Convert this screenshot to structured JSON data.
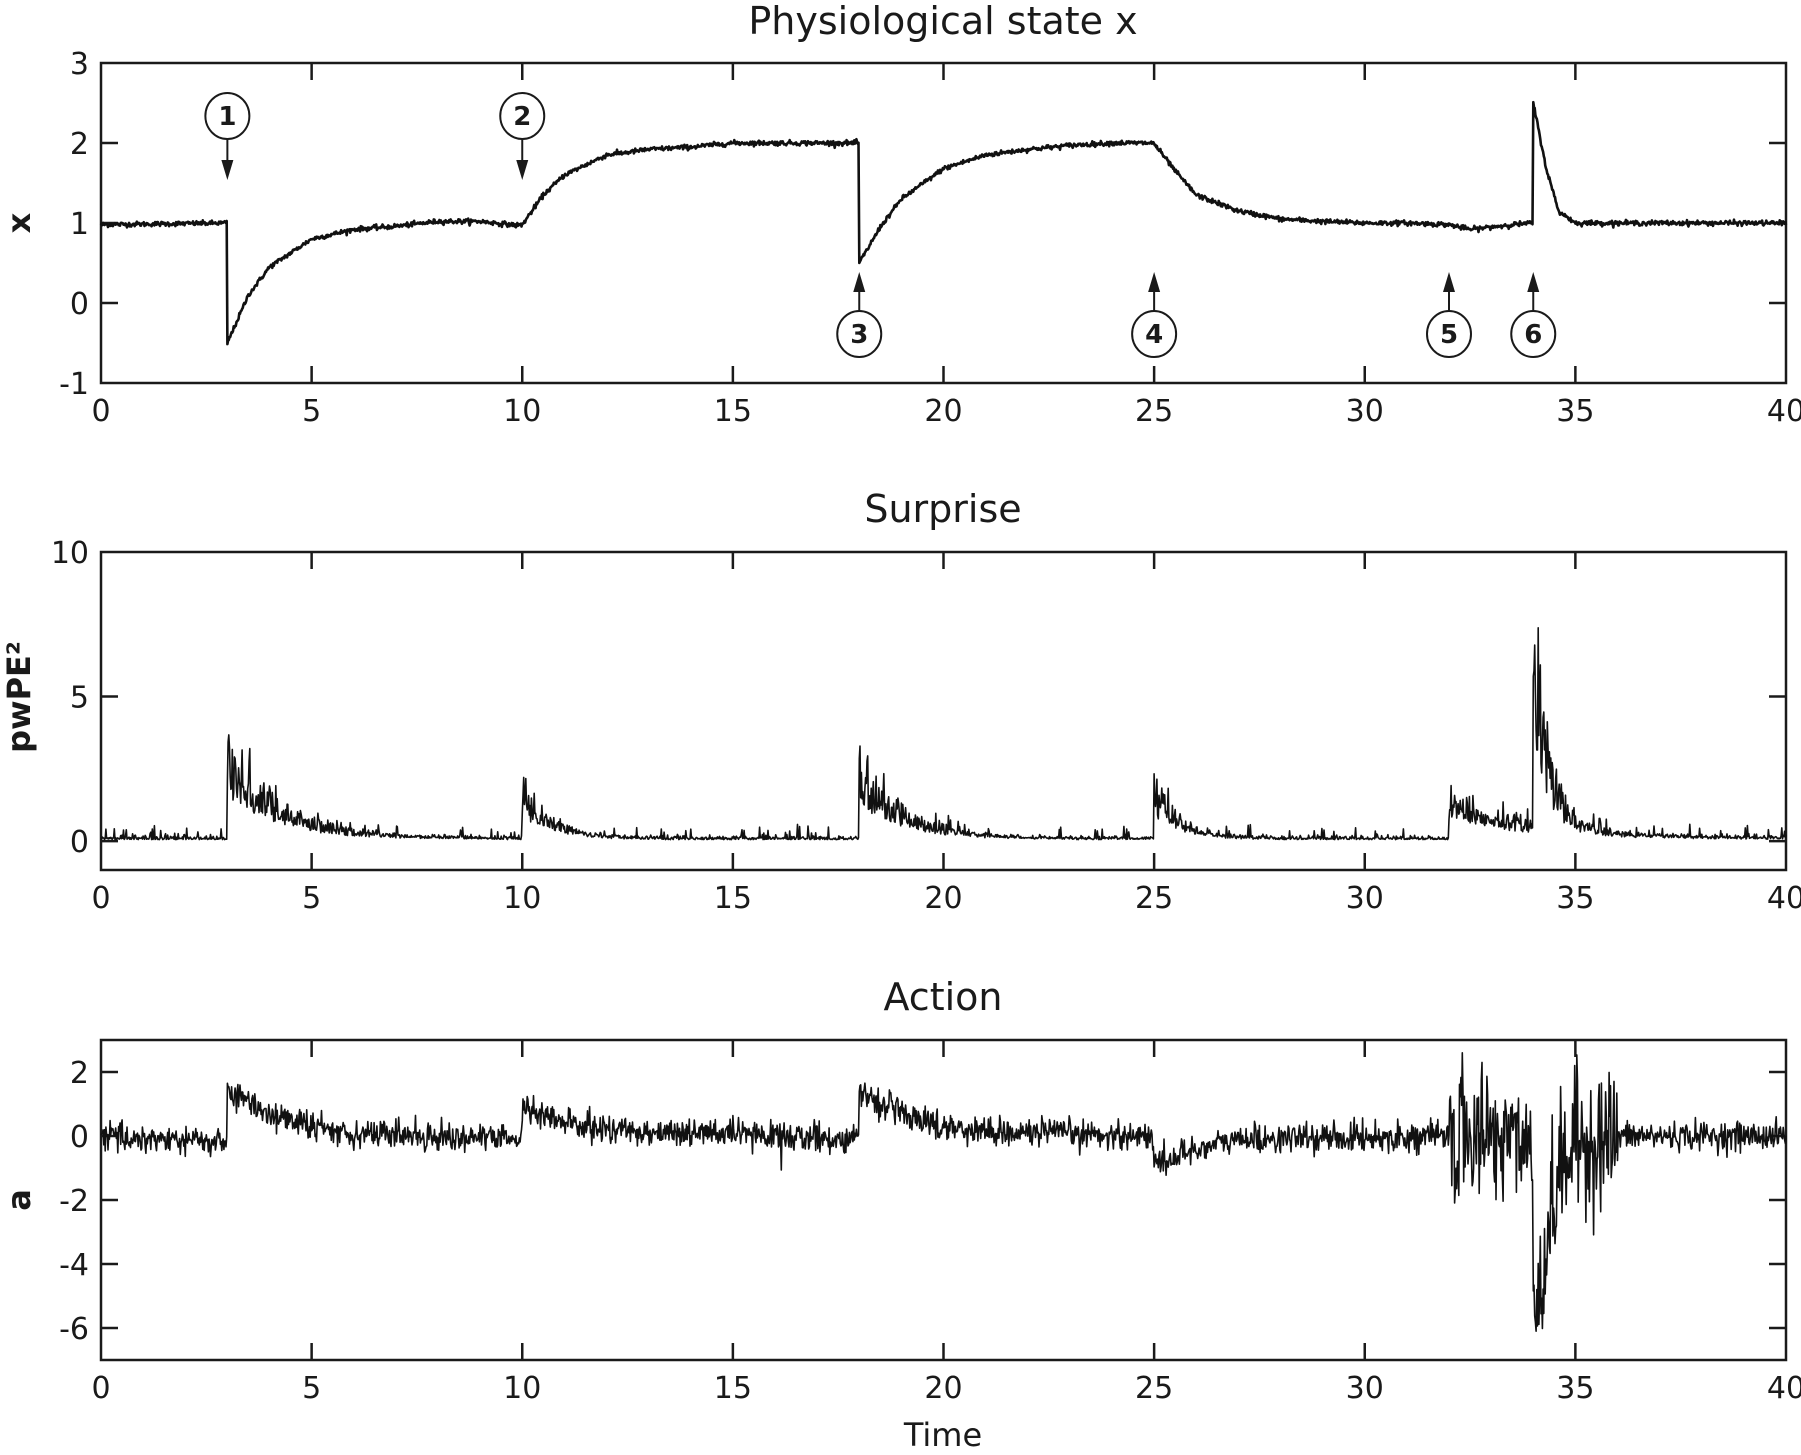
{
  "figure": {
    "xlabel": "Time",
    "colors": {
      "line": "#111111",
      "axis": "#1a1a1a",
      "background": "#ffffff"
    }
  },
  "chart_data": [
    {
      "type": "line",
      "title": "Physiological state x",
      "xlabel": "",
      "ylabel": "x",
      "xlim": [
        0,
        40
      ],
      "ylim": [
        -1,
        3
      ],
      "xticks": [
        0,
        5,
        10,
        15,
        20,
        25,
        30,
        35,
        40
      ],
      "yticks": [
        -1,
        0,
        1,
        2,
        3
      ],
      "grid": false,
      "noise": 0.015,
      "series": [
        {
          "name": "x",
          "x": [
            0,
            2.99,
            3.0,
            3.5,
            4,
            5,
            6,
            7,
            8,
            9,
            9.9,
            10.0,
            10.5,
            11,
            12,
            13,
            14,
            15,
            16,
            17,
            17.99,
            18.0,
            18.5,
            19,
            20,
            21,
            22,
            23,
            24,
            24.99,
            25.5,
            26,
            27,
            28,
            29,
            30,
            31,
            32,
            32.5,
            33,
            33.5,
            33.99,
            34.0,
            34.3,
            34.6,
            35,
            36,
            37,
            38,
            39,
            40
          ],
          "y": [
            0.98,
            1.0,
            -0.5,
            0.1,
            0.45,
            0.8,
            0.92,
            0.96,
            1.02,
            1.02,
            0.97,
            0.98,
            1.35,
            1.6,
            1.85,
            1.92,
            1.95,
            2.0,
            2.0,
            2.0,
            2.0,
            0.5,
            0.95,
            1.3,
            1.68,
            1.85,
            1.92,
            1.97,
            2.0,
            2.0,
            1.65,
            1.35,
            1.15,
            1.05,
            1.02,
            1.0,
            1.0,
            0.98,
            0.92,
            0.95,
            0.98,
            1.0,
            2.5,
            1.7,
            1.15,
            1.0,
            1.0,
            1.0,
            1.0,
            1.0,
            1.0
          ]
        }
      ],
      "annotations": [
        {
          "label": "1",
          "x": 3,
          "direction": "down"
        },
        {
          "label": "2",
          "x": 10,
          "direction": "down"
        },
        {
          "label": "3",
          "x": 18,
          "direction": "up"
        },
        {
          "label": "4",
          "x": 25,
          "direction": "up"
        },
        {
          "label": "5",
          "x": 32,
          "direction": "up"
        },
        {
          "label": "6",
          "x": 34,
          "direction": "up"
        }
      ]
    },
    {
      "type": "line",
      "title": "Surprise",
      "xlabel": "",
      "ylabel": "pwPE²",
      "xlim": [
        0,
        40
      ],
      "ylim": [
        -1,
        10
      ],
      "xticks": [
        0,
        5,
        10,
        15,
        20,
        25,
        30,
        35,
        40
      ],
      "yticks": [
        0,
        5,
        10
      ],
      "grid": false,
      "series": [
        {
          "name": "pwPE²",
          "baseline": 0.05,
          "baseline_spike_max": 0.7,
          "events": [
            {
              "t": 3,
              "peak": 4.2,
              "decay": 1.2
            },
            {
              "t": 10,
              "peak": 2.3,
              "decay": 0.7
            },
            {
              "t": 18,
              "peak": 3.5,
              "decay": 1.0
            },
            {
              "t": 25,
              "peak": 2.4,
              "decay": 0.6
            },
            {
              "t": 32,
              "peak": 1.8,
              "decay": 2.0
            },
            {
              "t": 34,
              "peak": 9.4,
              "decay": 0.35
            }
          ]
        }
      ]
    },
    {
      "type": "line",
      "title": "Action",
      "xlabel": "Time",
      "ylabel": "a",
      "xlim": [
        0,
        40
      ],
      "ylim": [
        -7,
        3
      ],
      "xticks": [
        0,
        5,
        10,
        15,
        20,
        25,
        30,
        35,
        40
      ],
      "yticks": [
        -6,
        -4,
        -2,
        0,
        2
      ],
      "grid": false,
      "series": [
        {
          "name": "a",
          "noise": 0.22,
          "x": [
            0,
            2.99,
            3.0,
            4,
            5,
            6,
            9.99,
            10.0,
            11,
            12,
            17.99,
            18.0,
            19,
            20,
            21,
            24.99,
            25.0,
            26,
            27,
            32,
            33.99,
            34.0,
            34.3,
            34.6,
            35,
            36,
            40
          ],
          "y": [
            0.0,
            -0.2,
            1.4,
            0.7,
            0.3,
            0.1,
            -0.1,
            0.9,
            0.4,
            0.2,
            -0.1,
            1.4,
            0.7,
            0.3,
            0.15,
            0.0,
            -0.9,
            -0.4,
            -0.1,
            0.0,
            0.0,
            -4.5,
            -3.5,
            -1.2,
            -0.2,
            0.0,
            0.0
          ],
          "high_variance_interval": [
            32,
            36
          ],
          "high_variance_amplitude": 1.1,
          "extremes": {
            "max": 2.6,
            "min": -6.1,
            "min_at": 34
          }
        }
      ]
    }
  ]
}
